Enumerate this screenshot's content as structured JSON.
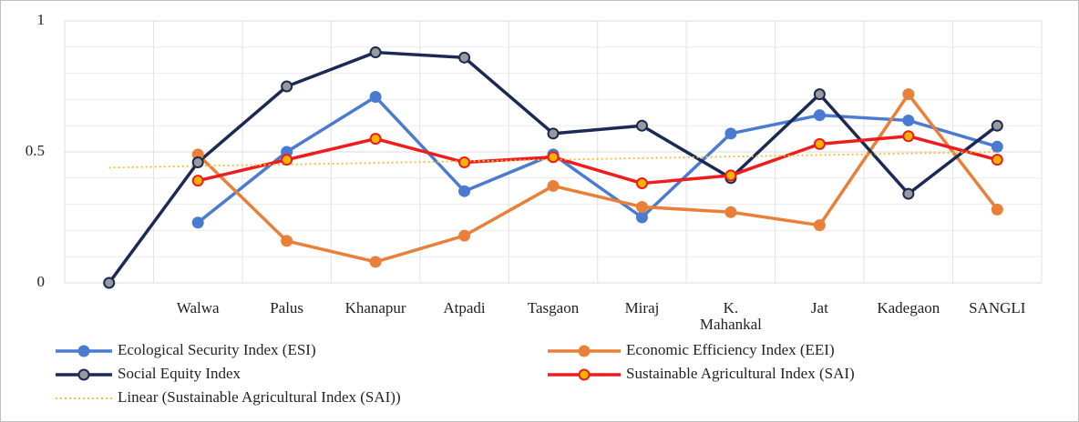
{
  "chart_data": {
    "type": "line",
    "categories": [
      null,
      "Walwa",
      "Palus",
      "Khanapur",
      "Atpadi",
      "Tasgaon",
      "Miraj",
      "K. Mahankal",
      "Jat",
      "Kadegaon",
      "SANGLI"
    ],
    "ylim": [
      0,
      1
    ],
    "yticks": [
      0,
      0.5,
      1
    ],
    "y_minor_grid": [
      0.1,
      0.2,
      0.3,
      0.4,
      0.6,
      0.7,
      0.8,
      0.9
    ],
    "grid": true,
    "legend": "bottom",
    "series": [
      {
        "name": "Ecological Security Index (ESI)",
        "color": "#4a7bd0",
        "marker_color": "#4a7bd0",
        "values": [
          null,
          0.23,
          0.5,
          0.71,
          0.35,
          0.49,
          0.25,
          0.57,
          0.64,
          0.62,
          0.52
        ]
      },
      {
        "name": "Economic Efficiency Index (EEI)",
        "color": "#e8803a",
        "marker_color": "#e8803a",
        "values": [
          null,
          0.49,
          0.16,
          0.08,
          0.18,
          0.37,
          0.29,
          0.27,
          0.22,
          0.72,
          0.28
        ]
      },
      {
        "name": "Social Equity Index",
        "color": "#1b2a55",
        "marker_color": "#9a9a9a",
        "values": [
          0,
          0.46,
          0.75,
          0.88,
          0.86,
          0.57,
          0.6,
          0.4,
          0.72,
          0.34,
          0.6
        ]
      },
      {
        "name": "Sustainable Agricultural Index (SAI)",
        "color": "#ee1c1c",
        "marker_color": "#f4b400",
        "values": [
          null,
          0.39,
          0.47,
          0.55,
          0.46,
          0.48,
          0.38,
          0.41,
          0.53,
          0.56,
          0.47
        ]
      },
      {
        "name": "Linear (Sustainable Agricultural Index (SAI))",
        "color": "#f0c040",
        "style": "dotted",
        "values": [
          0.44,
          0.446,
          0.452,
          0.458,
          0.464,
          0.47,
          0.476,
          0.482,
          0.488,
          0.494,
          0.5
        ]
      }
    ]
  }
}
